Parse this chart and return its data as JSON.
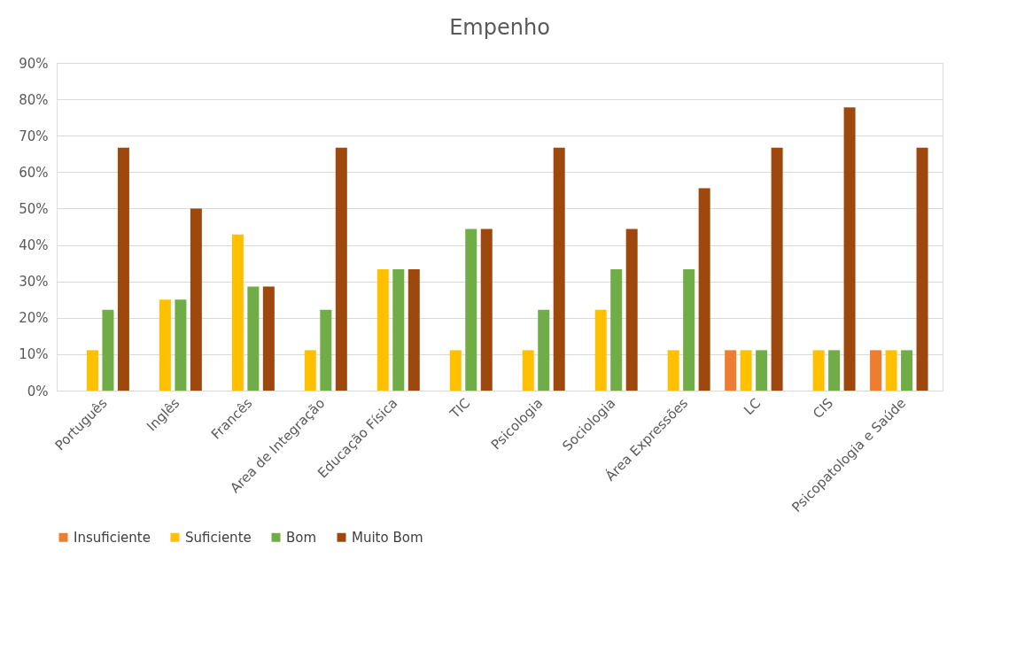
{
  "chart_data": {
    "type": "bar",
    "title": "Empenho",
    "categories": [
      "Português",
      "Inglês",
      "Francês",
      "Area de Integração",
      "Educação Física",
      "TIC",
      "Psicologia",
      "Sociologia",
      "Área Expressões",
      "LC",
      "CIS",
      "Psicopatologia e Saúde"
    ],
    "series": [
      {
        "name": "Insuficiente",
        "color": "#ed7d31",
        "values": [
          0,
          0,
          0,
          0,
          0,
          0,
          0,
          0,
          0,
          11.1,
          0,
          11.1
        ]
      },
      {
        "name": "Suficiente",
        "color": "#ffc000",
        "values": [
          11.1,
          25,
          42.9,
          11.1,
          33.3,
          11.1,
          11.1,
          22.2,
          11.1,
          11.1,
          11.1,
          11.1
        ]
      },
      {
        "name": "Bom",
        "color": "#70ad47",
        "values": [
          22.2,
          25,
          28.6,
          22.2,
          33.3,
          44.4,
          22.2,
          33.3,
          33.3,
          11.1,
          11.1,
          11.1
        ]
      },
      {
        "name": "Muito Bom",
        "color": "#9e480e",
        "values": [
          66.7,
          50,
          28.6,
          66.7,
          33.3,
          44.4,
          66.7,
          44.4,
          55.6,
          66.7,
          77.8,
          66.7
        ]
      }
    ],
    "ylim": [
      0,
      90
    ],
    "yticks": [
      {
        "value": 0,
        "label": "0%"
      },
      {
        "value": 10,
        "label": "10%"
      },
      {
        "value": 20,
        "label": "20%"
      },
      {
        "value": 30,
        "label": "30%"
      },
      {
        "value": 40,
        "label": "40%"
      },
      {
        "value": 50,
        "label": "50%"
      },
      {
        "value": 60,
        "label": "60%"
      },
      {
        "value": 70,
        "label": "70%"
      },
      {
        "value": 80,
        "label": "80%"
      },
      {
        "value": 90,
        "label": "90%"
      }
    ],
    "grid": "y",
    "legend": "bottom"
  }
}
